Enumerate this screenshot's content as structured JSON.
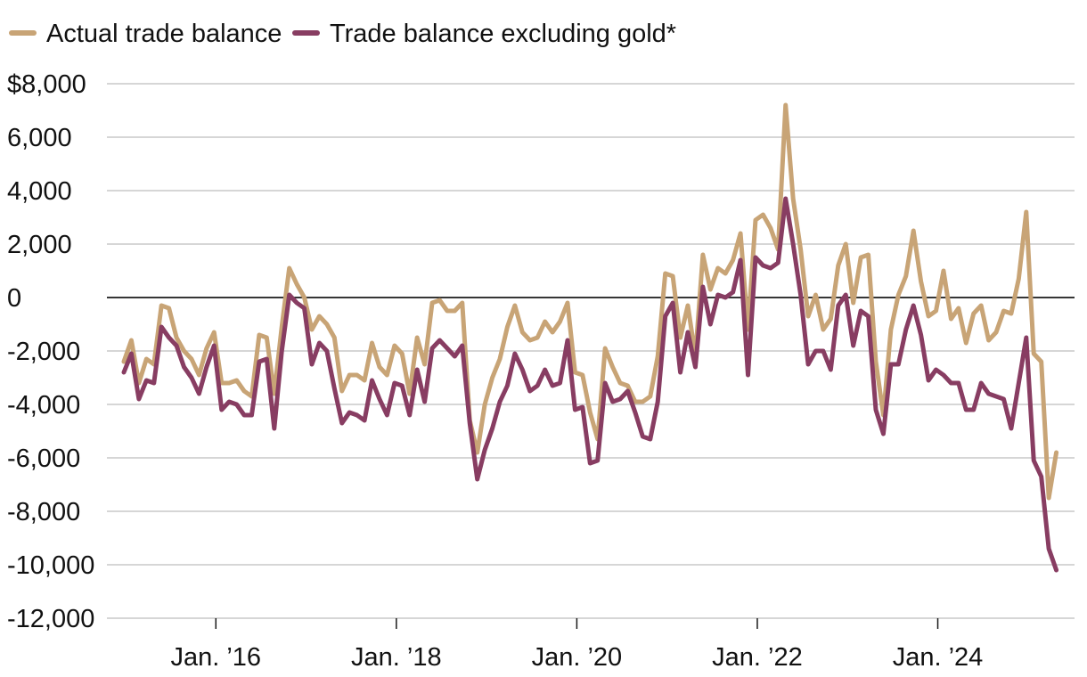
{
  "chart_data": {
    "type": "line",
    "title": "",
    "xlabel": "",
    "ylabel": "",
    "ylim": [
      -12000,
      8000
    ],
    "y_ticks": [
      {
        "value": 8000,
        "label": "$8,000"
      },
      {
        "value": 6000,
        "label": "6,000"
      },
      {
        "value": 4000,
        "label": "4,000"
      },
      {
        "value": 2000,
        "label": "2,000"
      },
      {
        "value": 0,
        "label": "0"
      },
      {
        "value": -2000,
        "label": "-2,000"
      },
      {
        "value": -4000,
        "label": "-4,000"
      },
      {
        "value": -6000,
        "label": "-6,000"
      },
      {
        "value": -8000,
        "label": "-8,000"
      },
      {
        "value": -10000,
        "label": "-10,000"
      },
      {
        "value": -12000,
        "label": "-12,000"
      }
    ],
    "x_ticks": [
      {
        "index": 12,
        "label": "Jan. ’16"
      },
      {
        "index": 36,
        "label": "Jan. ’18"
      },
      {
        "index": 60,
        "label": "Jan. ’20"
      },
      {
        "index": 84,
        "label": "Jan. ’22"
      },
      {
        "index": 108,
        "label": "Jan. ’24"
      }
    ],
    "x_start": "Jan. 2015",
    "x_frequency": "monthly",
    "legend_position": "top-left",
    "series": [
      {
        "name": "Actual trade balance",
        "color": "#c8a476",
        "values": [
          -2400,
          -1600,
          -3200,
          -2300,
          -2500,
          -300,
          -400,
          -1500,
          -2000,
          -2300,
          -2900,
          -1900,
          -1300,
          -3200,
          -3200,
          -3100,
          -3500,
          -3700,
          -1400,
          -1500,
          -3600,
          -1100,
          1100,
          500,
          0,
          -1200,
          -700,
          -1000,
          -1500,
          -3500,
          -2900,
          -2900,
          -3100,
          -1700,
          -2600,
          -2900,
          -1800,
          -2100,
          -3600,
          -1500,
          -2500,
          -200,
          -100,
          -500,
          -500,
          -200,
          -4600,
          -5800,
          -4000,
          -3000,
          -2300,
          -1100,
          -300,
          -1300,
          -1600,
          -1500,
          -900,
          -1300,
          -900,
          -200,
          -2800,
          -2900,
          -4300,
          -5300,
          -1900,
          -2600,
          -3200,
          -3300,
          -3900,
          -3900,
          -3700,
          -2200,
          900,
          800,
          -1500,
          -300,
          -2200,
          1600,
          300,
          1100,
          900,
          1400,
          2400,
          -1200,
          2900,
          3100,
          2600,
          1800,
          7200,
          3700,
          1800,
          -700,
          100,
          -1200,
          -800,
          1200,
          2000,
          -200,
          1500,
          1600,
          -2400,
          -4400,
          -1200,
          100,
          800,
          2500,
          600,
          -700,
          -500,
          1000,
          -800,
          -400,
          -1700,
          -600,
          -300,
          -1600,
          -1300,
          -500,
          -600,
          700,
          3200,
          -2100,
          -2400,
          -7500,
          -5800
        ]
      },
      {
        "name": "Trade balance excluding gold*",
        "color": "#883d62",
        "values": [
          -2800,
          -2100,
          -3800,
          -3100,
          -3200,
          -1100,
          -1500,
          -1800,
          -2600,
          -3000,
          -3600,
          -2600,
          -1800,
          -4200,
          -3900,
          -4000,
          -4400,
          -4400,
          -2400,
          -2300,
          -4900,
          -2000,
          100,
          -200,
          -400,
          -2500,
          -1700,
          -2000,
          -3400,
          -4700,
          -4300,
          -4400,
          -4600,
          -3100,
          -3800,
          -4400,
          -3200,
          -3300,
          -4400,
          -2700,
          -3900,
          -1900,
          -1600,
          -1900,
          -2200,
          -1800,
          -4700,
          -6800,
          -5700,
          -4900,
          -3900,
          -3300,
          -2100,
          -2700,
          -3500,
          -3300,
          -2700,
          -3300,
          -3200,
          -1600,
          -4200,
          -4100,
          -6200,
          -6100,
          -3200,
          -3900,
          -3800,
          -3500,
          -4300,
          -5200,
          -5300,
          -3900,
          -700,
          -200,
          -2800,
          -1300,
          -2600,
          400,
          -1000,
          100,
          0,
          200,
          1400,
          -2900,
          1500,
          1200,
          1100,
          1300,
          3700,
          2000,
          100,
          -2500,
          -2000,
          -2000,
          -2700,
          -300,
          100,
          -1800,
          -500,
          -700,
          -4200,
          -5100,
          -2500,
          -2500,
          -1200,
          -300,
          -1400,
          -3100,
          -2700,
          -2900,
          -3200,
          -3200,
          -4200,
          -4200,
          -3200,
          -3600,
          -3700,
          -3800,
          -4900,
          -3200,
          -1500,
          -6100,
          -6700,
          -9400,
          -10200
        ]
      }
    ]
  }
}
